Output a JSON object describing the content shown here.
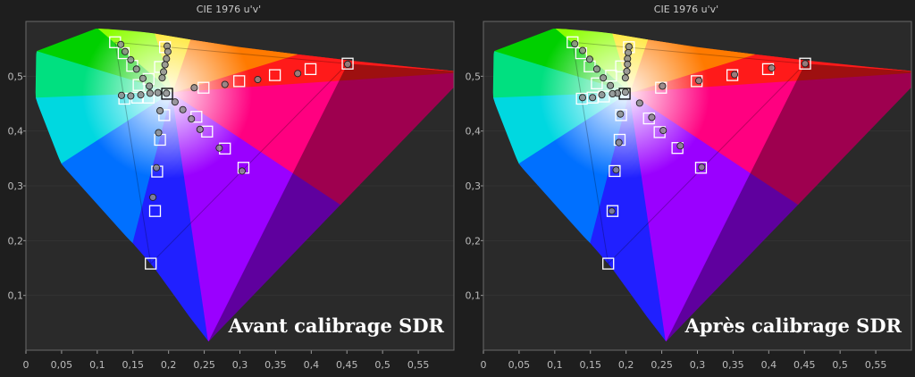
{
  "chart_data": [
    {
      "type": "scatter",
      "title": "CIE 1976 u'v'",
      "xlabel": "",
      "ylabel": "",
      "xlim": [
        0,
        0.6
      ],
      "ylim": [
        0,
        0.6
      ],
      "x_ticks": [
        "0",
        "0,05",
        "0,1",
        "0,15",
        "0,2",
        "0,25",
        "0,3",
        "0,35",
        "0,4",
        "0,45",
        "0,5",
        "0,55"
      ],
      "x_tick_values": [
        0,
        0.05,
        0.1,
        0.15,
        0.2,
        0.25,
        0.3,
        0.35,
        0.4,
        0.45,
        0.5,
        0.55
      ],
      "y_ticks": [
        "0,1",
        "0,2",
        "0,3",
        "0,4",
        "0,5"
      ],
      "y_tick_values": [
        0.1,
        0.2,
        0.3,
        0.4,
        0.5
      ],
      "annotation": "Avant calibrage SDR",
      "gamut": {
        "red": [
          0.451,
          0.523
        ],
        "green": [
          0.125,
          0.562
        ],
        "blue": [
          0.175,
          0.158
        ],
        "white": [
          0.198,
          0.468
        ]
      },
      "series": [
        {
          "values": [
            [
              0.451,
              0.523
            ],
            [
              0.399,
              0.513
            ],
            [
              0.349,
              0.502
            ],
            [
              0.299,
              0.491
            ],
            [
              0.249,
              0.479
            ],
            [
              0.198,
              0.468
            ],
            [
              0.195,
              0.553
            ],
            [
              0.188,
              0.517
            ],
            [
              0.172,
              0.495
            ],
            [
              0.158,
              0.484
            ],
            [
              0.149,
              0.519
            ],
            [
              0.137,
              0.542
            ],
            [
              0.125,
              0.562
            ],
            [
              0.138,
              0.459
            ],
            [
              0.156,
              0.461
            ],
            [
              0.172,
              0.461
            ],
            [
              0.194,
              0.429
            ],
            [
              0.188,
              0.384
            ],
            [
              0.184,
              0.326
            ],
            [
              0.181,
              0.254
            ],
            [
              0.175,
              0.158
            ],
            [
              0.239,
              0.426
            ],
            [
              0.254,
              0.399
            ],
            [
              0.279,
              0.368
            ],
            [
              0.305,
              0.333
            ]
          ]
        },
        {
          "values": [
            [
              0.451,
              0.522
            ],
            [
              0.381,
              0.505
            ],
            [
              0.325,
              0.494
            ],
            [
              0.279,
              0.485
            ],
            [
              0.236,
              0.479
            ],
            [
              0.197,
              0.469
            ],
            [
              0.198,
              0.555
            ],
            [
              0.199,
              0.545
            ],
            [
              0.197,
              0.532
            ],
            [
              0.195,
              0.521
            ],
            [
              0.193,
              0.508
            ],
            [
              0.191,
              0.497
            ],
            [
              0.133,
              0.558
            ],
            [
              0.139,
              0.545
            ],
            [
              0.147,
              0.53
            ],
            [
              0.155,
              0.513
            ],
            [
              0.164,
              0.496
            ],
            [
              0.173,
              0.482
            ],
            [
              0.185,
              0.47
            ],
            [
              0.134,
              0.465
            ],
            [
              0.147,
              0.464
            ],
            [
              0.161,
              0.466
            ],
            [
              0.174,
              0.469
            ],
            [
              0.188,
              0.437
            ],
            [
              0.186,
              0.397
            ],
            [
              0.183,
              0.333
            ],
            [
              0.178,
              0.279
            ],
            [
              0.209,
              0.453
            ],
            [
              0.22,
              0.439
            ],
            [
              0.232,
              0.422
            ],
            [
              0.244,
              0.403
            ],
            [
              0.271,
              0.369
            ],
            [
              0.303,
              0.327
            ]
          ]
        }
      ]
    },
    {
      "type": "scatter",
      "title": "CIE 1976 u'v'",
      "xlabel": "",
      "ylabel": "",
      "xlim": [
        0,
        0.6
      ],
      "ylim": [
        0,
        0.6
      ],
      "x_ticks": [
        "0",
        "0,05",
        "0,1",
        "0,15",
        "0,2",
        "0,25",
        "0,3",
        "0,35",
        "0,4",
        "0,45",
        "0,5",
        "0,55"
      ],
      "x_tick_values": [
        0,
        0.05,
        0.1,
        0.15,
        0.2,
        0.25,
        0.3,
        0.35,
        0.4,
        0.45,
        0.5,
        0.55
      ],
      "y_ticks": [
        "0,1",
        "0,2",
        "0,3",
        "0,4",
        "0,5"
      ],
      "y_tick_values": [
        0.1,
        0.2,
        0.3,
        0.4,
        0.5
      ],
      "annotation": "Après calibrage SDR",
      "gamut": {
        "red": [
          0.451,
          0.523
        ],
        "green": [
          0.125,
          0.562
        ],
        "blue": [
          0.175,
          0.158
        ],
        "white": [
          0.198,
          0.468
        ]
      },
      "series": [
        {
          "values": [
            [
              0.451,
              0.523
            ],
            [
              0.399,
              0.513
            ],
            [
              0.349,
              0.502
            ],
            [
              0.299,
              0.491
            ],
            [
              0.249,
              0.479
            ],
            [
              0.198,
              0.468
            ],
            [
              0.204,
              0.553
            ],
            [
              0.193,
              0.518
            ],
            [
              0.179,
              0.501
            ],
            [
              0.159,
              0.487
            ],
            [
              0.149,
              0.518
            ],
            [
              0.137,
              0.542
            ],
            [
              0.125,
              0.562
            ],
            [
              0.138,
              0.459
            ],
            [
              0.153,
              0.461
            ],
            [
              0.169,
              0.463
            ],
            [
              0.193,
              0.429
            ],
            [
              0.191,
              0.384
            ],
            [
              0.184,
              0.327
            ],
            [
              0.181,
              0.254
            ],
            [
              0.175,
              0.158
            ],
            [
              0.232,
              0.423
            ],
            [
              0.247,
              0.398
            ],
            [
              0.272,
              0.369
            ],
            [
              0.305,
              0.333
            ]
          ]
        },
        {
          "values": [
            [
              0.451,
              0.523
            ],
            [
              0.404,
              0.515
            ],
            [
              0.352,
              0.503
            ],
            [
              0.302,
              0.492
            ],
            [
              0.251,
              0.482
            ],
            [
              0.199,
              0.471
            ],
            [
              0.204,
              0.554
            ],
            [
              0.203,
              0.543
            ],
            [
              0.202,
              0.532
            ],
            [
              0.202,
              0.522
            ],
            [
              0.201,
              0.509
            ],
            [
              0.199,
              0.497
            ],
            [
              0.128,
              0.559
            ],
            [
              0.139,
              0.547
            ],
            [
              0.149,
              0.531
            ],
            [
              0.159,
              0.513
            ],
            [
              0.168,
              0.497
            ],
            [
              0.178,
              0.483
            ],
            [
              0.188,
              0.469
            ],
            [
              0.139,
              0.461
            ],
            [
              0.153,
              0.461
            ],
            [
              0.166,
              0.466
            ],
            [
              0.181,
              0.468
            ],
            [
              0.192,
              0.431
            ],
            [
              0.19,
              0.379
            ],
            [
              0.186,
              0.329
            ],
            [
              0.18,
              0.254
            ],
            [
              0.219,
              0.451
            ],
            [
              0.236,
              0.425
            ],
            [
              0.252,
              0.401
            ],
            [
              0.276,
              0.373
            ],
            [
              0.306,
              0.334
            ]
          ]
        }
      ]
    }
  ]
}
